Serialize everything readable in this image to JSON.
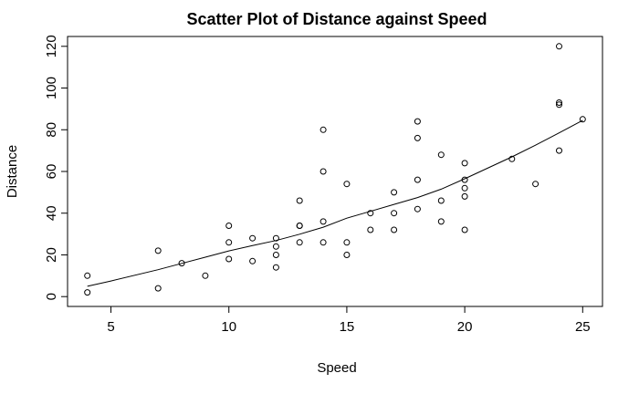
{
  "chart_data": {
    "type": "scatter",
    "title": "Scatter Plot of Distance against Speed",
    "xlabel": "Speed",
    "ylabel": "Distance",
    "xlim": [
      3.16,
      25.84
    ],
    "ylim": [
      -4.72,
      124.72
    ],
    "x_ticks": [
      5,
      10,
      15,
      20,
      25
    ],
    "y_ticks": [
      0,
      20,
      40,
      60,
      80,
      100,
      120
    ],
    "grid": false,
    "points": [
      {
        "x": 4,
        "y": 2
      },
      {
        "x": 4,
        "y": 10
      },
      {
        "x": 7,
        "y": 4
      },
      {
        "x": 7,
        "y": 22
      },
      {
        "x": 8,
        "y": 16
      },
      {
        "x": 9,
        "y": 10
      },
      {
        "x": 10,
        "y": 18
      },
      {
        "x": 10,
        "y": 26
      },
      {
        "x": 10,
        "y": 34
      },
      {
        "x": 11,
        "y": 17
      },
      {
        "x": 11,
        "y": 28
      },
      {
        "x": 12,
        "y": 14
      },
      {
        "x": 12,
        "y": 20
      },
      {
        "x": 12,
        "y": 24
      },
      {
        "x": 12,
        "y": 28
      },
      {
        "x": 13,
        "y": 26
      },
      {
        "x": 13,
        "y": 34
      },
      {
        "x": 13,
        "y": 34
      },
      {
        "x": 13,
        "y": 46
      },
      {
        "x": 14,
        "y": 26
      },
      {
        "x": 14,
        "y": 36
      },
      {
        "x": 14,
        "y": 60
      },
      {
        "x": 14,
        "y": 80
      },
      {
        "x": 15,
        "y": 20
      },
      {
        "x": 15,
        "y": 26
      },
      {
        "x": 15,
        "y": 54
      },
      {
        "x": 16,
        "y": 32
      },
      {
        "x": 16,
        "y": 40
      },
      {
        "x": 17,
        "y": 32
      },
      {
        "x": 17,
        "y": 40
      },
      {
        "x": 17,
        "y": 50
      },
      {
        "x": 18,
        "y": 42
      },
      {
        "x": 18,
        "y": 56
      },
      {
        "x": 18,
        "y": 76
      },
      {
        "x": 18,
        "y": 84
      },
      {
        "x": 19,
        "y": 36
      },
      {
        "x": 19,
        "y": 46
      },
      {
        "x": 19,
        "y": 68
      },
      {
        "x": 20,
        "y": 32
      },
      {
        "x": 20,
        "y": 48
      },
      {
        "x": 20,
        "y": 52
      },
      {
        "x": 20,
        "y": 56
      },
      {
        "x": 20,
        "y": 64
      },
      {
        "x": 22,
        "y": 66
      },
      {
        "x": 23,
        "y": 54
      },
      {
        "x": 24,
        "y": 70
      },
      {
        "x": 24,
        "y": 92
      },
      {
        "x": 24,
        "y": 93
      },
      {
        "x": 24,
        "y": 120
      },
      {
        "x": 25,
        "y": 85
      }
    ],
    "smooth_line": [
      {
        "x": 4,
        "y": 4.96
      },
      {
        "x": 5,
        "y": 7.5
      },
      {
        "x": 7,
        "y": 12.9
      },
      {
        "x": 8,
        "y": 15.9
      },
      {
        "x": 9,
        "y": 18.9
      },
      {
        "x": 10,
        "y": 21.9
      },
      {
        "x": 11,
        "y": 24.5
      },
      {
        "x": 12,
        "y": 26.9
      },
      {
        "x": 13,
        "y": 29.9
      },
      {
        "x": 14,
        "y": 33.3
      },
      {
        "x": 15,
        "y": 37.6
      },
      {
        "x": 16,
        "y": 40.9
      },
      {
        "x": 17,
        "y": 44.2
      },
      {
        "x": 18,
        "y": 47.5
      },
      {
        "x": 19,
        "y": 51.5
      },
      {
        "x": 20,
        "y": 56.5
      },
      {
        "x": 22,
        "y": 67.0
      },
      {
        "x": 23,
        "y": 72.6
      },
      {
        "x": 24,
        "y": 78.5
      },
      {
        "x": 25,
        "y": 84.5
      }
    ]
  }
}
